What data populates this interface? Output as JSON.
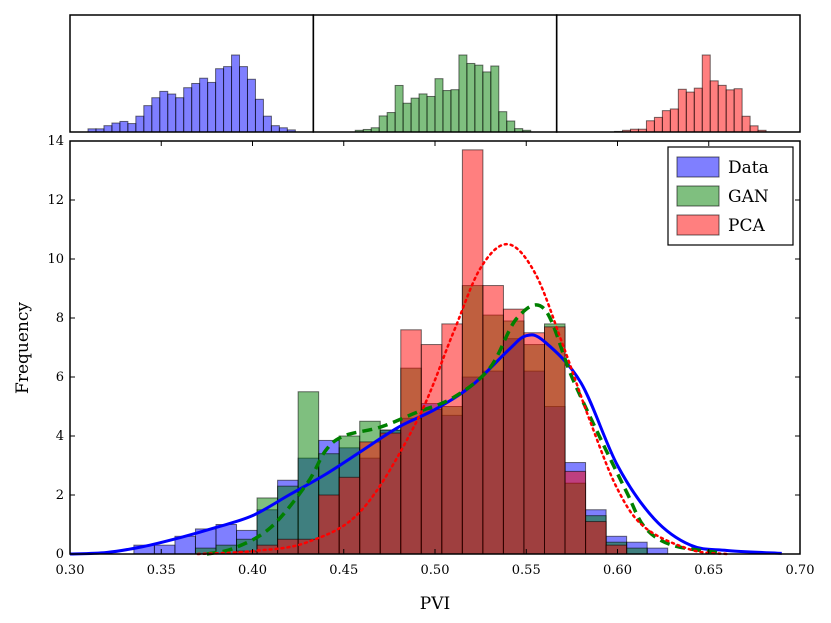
{
  "chart_data": {
    "type": "histogram",
    "xlabel": "PVI",
    "ylabel": "Frequency",
    "xlim": [
      0.3,
      0.7
    ],
    "ylim": [
      0,
      14
    ],
    "xticks": [
      "0.30",
      "0.35",
      "0.40",
      "0.45",
      "0.50",
      "0.55",
      "0.60",
      "0.65",
      "0.70"
    ],
    "yticks": [
      "0",
      "2",
      "4",
      "6",
      "8",
      "10",
      "12",
      "14"
    ],
    "bin_start": 0.335,
    "bin_width": 0.01125,
    "legend": {
      "position": "top-right",
      "entries": [
        "Data",
        "GAN",
        "PCA"
      ]
    },
    "series": [
      {
        "name": "Data",
        "color": "#0000ff",
        "alpha": 0.5,
        "values": [
          0.3,
          0.3,
          0.6,
          0.85,
          1.0,
          0.8,
          1.5,
          2.5,
          3.25,
          3.85,
          3.6,
          3.25,
          4.2,
          4.6,
          5.1,
          4.7,
          6.0,
          6.2,
          7.3,
          6.2,
          5.0,
          3.1,
          1.5,
          0.6,
          0.4,
          0.2
        ],
        "kde": [
          [
            0.3,
            0.0
          ],
          [
            0.32,
            0.05
          ],
          [
            0.34,
            0.25
          ],
          [
            0.36,
            0.55
          ],
          [
            0.38,
            0.9
          ],
          [
            0.4,
            1.3
          ],
          [
            0.42,
            2.0
          ],
          [
            0.44,
            2.7
          ],
          [
            0.46,
            3.5
          ],
          [
            0.48,
            4.3
          ],
          [
            0.5,
            4.9
          ],
          [
            0.52,
            5.7
          ],
          [
            0.54,
            6.9
          ],
          [
            0.55,
            7.4
          ],
          [
            0.56,
            7.2
          ],
          [
            0.58,
            5.8
          ],
          [
            0.6,
            3.0
          ],
          [
            0.62,
            1.2
          ],
          [
            0.64,
            0.3
          ],
          [
            0.66,
            0.12
          ],
          [
            0.69,
            0.02
          ]
        ],
        "kde_style": "solid"
      },
      {
        "name": "GAN",
        "color": "#008000",
        "alpha": 0.5,
        "values": [
          0,
          0,
          0,
          0.2,
          0.3,
          0.5,
          1.9,
          2.3,
          5.5,
          3.4,
          4.0,
          4.5,
          4.2,
          6.3,
          4.9,
          5.0,
          9.1,
          8.1,
          7.9,
          7.1,
          7.8,
          2.4,
          1.3,
          0.4,
          0.2,
          0
        ],
        "kde": [
          [
            0.375,
            0.0
          ],
          [
            0.39,
            0.2
          ],
          [
            0.41,
            0.9
          ],
          [
            0.43,
            2.4
          ],
          [
            0.44,
            3.5
          ],
          [
            0.45,
            4.0
          ],
          [
            0.47,
            4.3
          ],
          [
            0.49,
            4.8
          ],
          [
            0.51,
            5.3
          ],
          [
            0.53,
            6.3
          ],
          [
            0.545,
            8.0
          ],
          [
            0.56,
            8.3
          ],
          [
            0.575,
            6.0
          ],
          [
            0.59,
            4.0
          ],
          [
            0.605,
            2.1
          ],
          [
            0.615,
            0.9
          ],
          [
            0.63,
            0.3
          ],
          [
            0.655,
            0.05
          ]
        ],
        "kde_style": "dashed"
      },
      {
        "name": "PCA",
        "color": "#ff0000",
        "alpha": 0.5,
        "values": [
          0,
          0,
          0,
          0,
          0,
          0.1,
          0.3,
          0.5,
          0.5,
          2.0,
          2.6,
          3.8,
          4.1,
          7.6,
          7.1,
          7.8,
          13.7,
          9.1,
          8.3,
          7.5,
          7.7,
          2.8,
          1.1,
          0.3,
          0,
          0
        ],
        "kde": [
          [
            0.37,
            0.0
          ],
          [
            0.4,
            0.1
          ],
          [
            0.43,
            0.4
          ],
          [
            0.46,
            1.5
          ],
          [
            0.49,
            4.5
          ],
          [
            0.51,
            7.5
          ],
          [
            0.525,
            9.7
          ],
          [
            0.54,
            10.5
          ],
          [
            0.555,
            9.5
          ],
          [
            0.57,
            7.1
          ],
          [
            0.585,
            4.5
          ],
          [
            0.6,
            2.2
          ],
          [
            0.615,
            0.9
          ],
          [
            0.64,
            0.15
          ],
          [
            0.66,
            0.0
          ]
        ],
        "kde_style": "dotted"
      }
    ]
  }
}
